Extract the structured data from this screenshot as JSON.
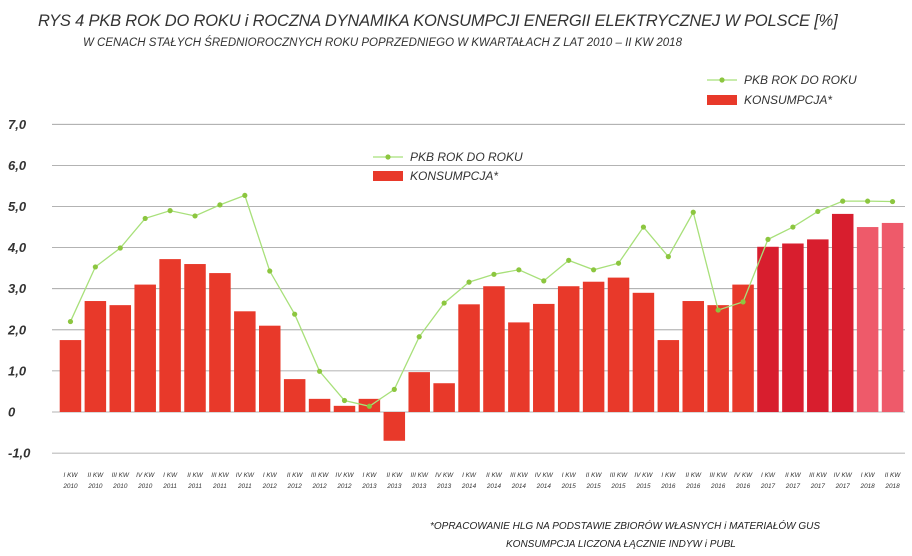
{
  "title": "RYS 4 PKB ROK DO ROKU i ROCZNA DYNAMIKA KONSUMPCJI ENERGII ELEKTRYCZNEJ W POLSCE [%]",
  "subtitle": "W CENACH STAŁYCH ŚREDNIOROCZNYCH ROKU POPRZEDNIEGO W KWARTAŁACH  Z LAT 2010 – II KW 2018",
  "note_line1": "*OPRACOWANIE HLG NA PODSTAWIE ZBIORÓW WŁASNYCH i MATERIAŁÓW GUS",
  "note_line2": "KONSUMPCJA LICZONA ŁĄCZNIE INDYW i PUBL",
  "colors": {
    "bar": "#e8392a",
    "bar_2017": "#d81e2e",
    "bar_2018": "#ee5a6a",
    "line": "#a8e07a",
    "marker": "#8cc63f"
  },
  "chart_data": {
    "type": "bar",
    "title": "RYS 4 PKB ROK DO ROKU i ROCZNA DYNAMIKA KONSUMPCJI ENERGII ELEKTRYCZNEJ W POLSCE [%]",
    "subtitle": "W CENACH STAŁYCH ŚREDNIOROCZNYCH ROKU POPRZEDNIEGO W KWARTAŁACH  Z LAT 2010 – II KW 2018",
    "categories": [
      [
        "I KW",
        "2010"
      ],
      [
        "II KW",
        "2010"
      ],
      [
        "III KW",
        "2010"
      ],
      [
        "IV KW",
        "2010"
      ],
      [
        "I KW",
        "2011"
      ],
      [
        "II KW",
        "2011"
      ],
      [
        "III KW",
        "2011"
      ],
      [
        "IV KW",
        "2011"
      ],
      [
        "I KW",
        "2012"
      ],
      [
        "II KW",
        "2012"
      ],
      [
        "III KW",
        "2012"
      ],
      [
        "IV KW",
        "2012"
      ],
      [
        "I KW",
        "2013"
      ],
      [
        "II KW",
        "2013"
      ],
      [
        "III KW",
        "2013"
      ],
      [
        "IV KW",
        "2013"
      ],
      [
        "I KW",
        "2014"
      ],
      [
        "II KW",
        "2014"
      ],
      [
        "III KW",
        "2014"
      ],
      [
        "IV KW",
        "2014"
      ],
      [
        "I KW",
        "2015"
      ],
      [
        "II KW",
        "2015"
      ],
      [
        "III KW",
        "2015"
      ],
      [
        "IV KW",
        "2015"
      ],
      [
        "I KW",
        "2016"
      ],
      [
        "II KW",
        "2016"
      ],
      [
        "III KW",
        "2016"
      ],
      [
        "IV KW",
        "2016"
      ],
      [
        "I KW",
        "2017"
      ],
      [
        "II KW",
        "2017"
      ],
      [
        "III KW",
        "2017"
      ],
      [
        "IV KW",
        "2017"
      ],
      [
        "I KW",
        "2018"
      ],
      [
        "II KW",
        "2018"
      ]
    ],
    "series": [
      {
        "name": "KONSUMPCJA*",
        "kind": "bar",
        "values": [
          1.75,
          2.7,
          2.6,
          3.1,
          3.72,
          3.6,
          3.38,
          2.45,
          2.1,
          0.8,
          0.32,
          0.15,
          0.32,
          -0.7,
          0.97,
          0.7,
          2.62,
          3.06,
          2.18,
          2.63,
          3.06,
          3.17,
          3.27,
          2.9,
          1.75,
          2.7,
          2.6,
          3.1,
          4.02,
          4.1,
          4.2,
          4.82,
          4.5,
          4.6
        ]
      },
      {
        "name": "PKB ROK DO ROKU",
        "kind": "line",
        "values": [
          2.2,
          3.53,
          3.99,
          4.71,
          4.9,
          4.77,
          5.04,
          5.27,
          3.43,
          2.38,
          0.99,
          0.28,
          0.14,
          0.55,
          1.83,
          2.65,
          3.16,
          3.35,
          3.46,
          3.19,
          3.69,
          3.46,
          3.62,
          4.5,
          3.78,
          4.86,
          2.48,
          2.68,
          4.2,
          4.5,
          4.88,
          5.13,
          5.13,
          5.12
        ]
      }
    ],
    "yticks": [
      "7,0",
      "6,0",
      "5,0",
      "4,0",
      "3,0",
      "2,0",
      "1,0",
      "0",
      "-1,0"
    ],
    "ylim": [
      -1,
      7
    ],
    "grid": true,
    "legend": [
      {
        "label": "PKB ROK DO ROKU",
        "placement": "top-right"
      },
      {
        "label": "KONSUMPCJA*",
        "placement": "top-right"
      },
      {
        "label": "PKB ROK DO ROKU",
        "placement": "center-left"
      },
      {
        "label": "KONSUMPCJA*",
        "placement": "center-left"
      }
    ]
  }
}
